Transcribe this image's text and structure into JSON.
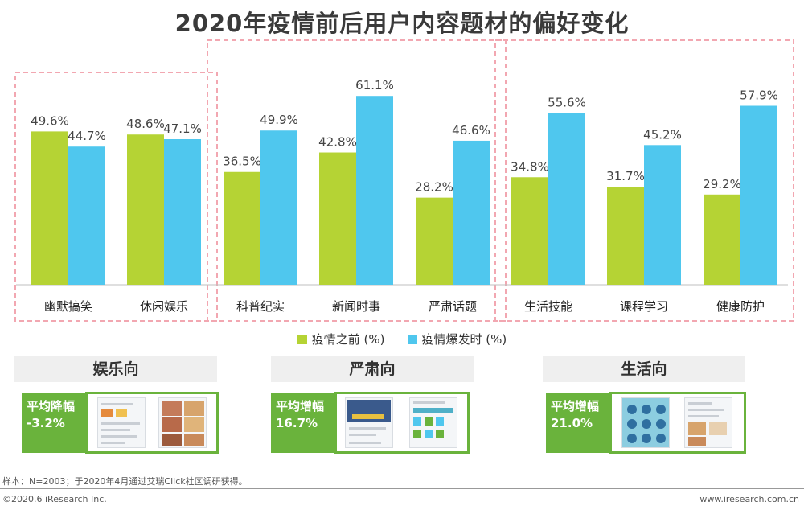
{
  "title": "2020年疫情前后用户内容题材的偏好变化",
  "colors": {
    "before": "#b5d334",
    "during": "#4fc7ee",
    "group_border": "#f2a7b1",
    "stat_green": "#6ab33c"
  },
  "chart_data": {
    "type": "bar",
    "title": "2020年疫情前后用户内容题材的偏好变化",
    "categories": [
      "幽默搞笑",
      "休闲娱乐",
      "科普纪实",
      "新闻时事",
      "严肃话题",
      "生活技能",
      "课程学习",
      "健康防护"
    ],
    "series": [
      {
        "name": "疫情之前 (%)",
        "values": [
          49.6,
          48.6,
          36.5,
          42.8,
          28.2,
          34.8,
          31.7,
          29.2
        ]
      },
      {
        "name": "疫情爆发时 (%)",
        "values": [
          44.7,
          47.1,
          49.9,
          61.1,
          46.6,
          55.6,
          45.2,
          57.9
        ]
      }
    ],
    "value_labels": {
      "before": [
        "49.6%",
        "48.6%",
        "36.5%",
        "42.8%",
        "28.2%",
        "34.8%",
        "31.7%",
        "29.2%"
      ],
      "during": [
        "44.7%",
        "47.1%",
        "49.9%",
        "61.1%",
        "46.6%",
        "55.6%",
        "45.2%",
        "57.9%"
      ]
    },
    "groups": [
      {
        "label": "娱乐向",
        "categories": [
          0,
          1
        ]
      },
      {
        "label": "严肃向",
        "categories": [
          2,
          3,
          4
        ]
      },
      {
        "label": "生活向",
        "categories": [
          5,
          6,
          7
        ]
      }
    ],
    "ylim": [
      0,
      70
    ],
    "grid": false,
    "legend_position": "bottom-center"
  },
  "legend": {
    "before": "疫情之前 (%)",
    "during": "疫情爆发时 (%)"
  },
  "panels": [
    {
      "title": "娱乐向",
      "stat_label": "平均降幅",
      "stat_value": "-3.2%"
    },
    {
      "title": "严肃向",
      "stat_label": "平均增幅",
      "stat_value": "16.7%"
    },
    {
      "title": "生活向",
      "stat_label": "平均增幅",
      "stat_value": "21.0%"
    }
  ],
  "footnote": "样本：N=2003；于2020年4月通过艾瑞Click社区调研获得。",
  "footer": {
    "left": "©2020.6 iResearch Inc.",
    "right": "www.iresearch.com.cn"
  }
}
